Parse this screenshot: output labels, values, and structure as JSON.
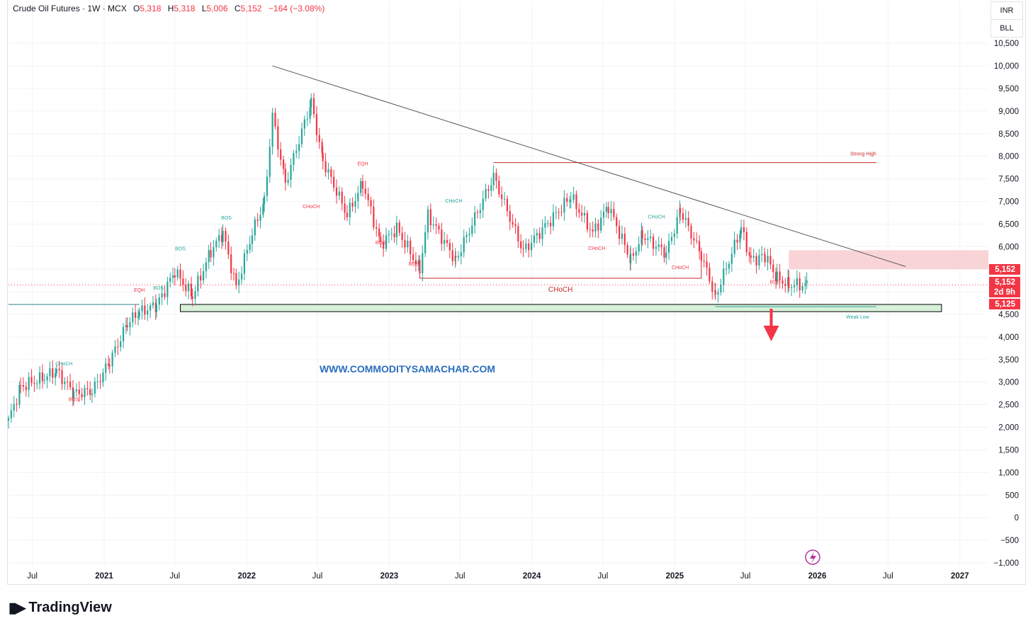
{
  "header": {
    "symbol": "Crude Oil Futures · 1W · MCX",
    "o_label": "O",
    "o_value": "5,318",
    "h_label": "H",
    "h_value": "5,318",
    "l_label": "L",
    "l_value": "5,006",
    "c_label": "C",
    "c_value": "5,152",
    "change": "−164 (−3.08%)"
  },
  "currency": {
    "top": "INR",
    "bottom": "BLL"
  },
  "footer": {
    "brand": "TradingView",
    "logo_icon": "tradingview-logo-icon"
  },
  "colors": {
    "up": "#26a69a",
    "down": "#f23645",
    "trendline": "#555555",
    "strong_high": "#c62828",
    "zone_red": "#f7c6c9",
    "zone_green": "#d7f0d9",
    "watermark": "#2a6ebd"
  },
  "chart_data": {
    "type": "candlestick",
    "title": "Crude Oil Futures · 1W · MCX",
    "ylim": [
      -1000,
      10800
    ],
    "y_ticks": [
      "10,500",
      "10,000",
      "9,500",
      "9,000",
      "8,500",
      "8,000",
      "7,500",
      "7,000",
      "6,500",
      "6,000",
      "5,500",
      "5,000",
      "4,500",
      "4,000",
      "3,500",
      "3,000",
      "2,500",
      "2,000",
      "1,500",
      "1,000",
      "500",
      "0",
      "−500",
      "−1,000"
    ],
    "x_ticks": [
      "Jul",
      "2021",
      "Jul",
      "2022",
      "Jul",
      "2023",
      "Jul",
      "2024",
      "Jul",
      "2025",
      "Jul",
      "2026",
      "Jul",
      "2027"
    ],
    "x_tick_dates": [
      "2020-07-01",
      "2021-01-01",
      "2021-07-01",
      "2022-01-01",
      "2022-07-01",
      "2023-01-01",
      "2023-07-01",
      "2024-01-01",
      "2024-07-01",
      "2025-01-01",
      "2025-07-01",
      "2026-01-01",
      "2026-07-01",
      "2027-01-01"
    ],
    "xlim": [
      "2020-05-01",
      "2027-03-15"
    ],
    "price_path": [
      {
        "date": "2020-05-01",
        "price": 2150
      },
      {
        "date": "2020-06-01",
        "price": 2900
      },
      {
        "date": "2020-08-01",
        "price": 3100
      },
      {
        "date": "2020-09-01",
        "price": 3250
      },
      {
        "date": "2020-10-15",
        "price": 2750
      },
      {
        "date": "2020-12-01",
        "price": 2800
      },
      {
        "date": "2021-01-15",
        "price": 3450
      },
      {
        "date": "2021-03-01",
        "price": 4300
      },
      {
        "date": "2021-04-01",
        "price": 4550
      },
      {
        "date": "2021-05-15",
        "price": 4700
      },
      {
        "date": "2021-07-01",
        "price": 5450
      },
      {
        "date": "2021-08-15",
        "price": 4900
      },
      {
        "date": "2021-10-01",
        "price": 5900
      },
      {
        "date": "2021-11-01",
        "price": 6300
      },
      {
        "date": "2021-12-05",
        "price": 5100
      },
      {
        "date": "2022-01-15",
        "price": 6300
      },
      {
        "date": "2022-02-15",
        "price": 7000
      },
      {
        "date": "2022-03-08",
        "price": 8900
      },
      {
        "date": "2022-04-10",
        "price": 7400
      },
      {
        "date": "2022-06-15",
        "price": 9200
      },
      {
        "date": "2022-07-15",
        "price": 7900
      },
      {
        "date": "2022-09-15",
        "price": 6700
      },
      {
        "date": "2022-10-25",
        "price": 7400
      },
      {
        "date": "2022-12-10",
        "price": 6050
      },
      {
        "date": "2023-01-20",
        "price": 6400
      },
      {
        "date": "2023-03-20",
        "price": 5500
      },
      {
        "date": "2023-04-10",
        "price": 6700
      },
      {
        "date": "2023-06-20",
        "price": 5700
      },
      {
        "date": "2023-09-25",
        "price": 7550
      },
      {
        "date": "2023-12-10",
        "price": 5900
      },
      {
        "date": "2024-04-10",
        "price": 7100
      },
      {
        "date": "2024-06-05",
        "price": 6300
      },
      {
        "date": "2024-07-15",
        "price": 6900
      },
      {
        "date": "2024-09-10",
        "price": 5700
      },
      {
        "date": "2024-10-10",
        "price": 6250
      },
      {
        "date": "2024-12-10",
        "price": 5850
      },
      {
        "date": "2025-01-15",
        "price": 6800
      },
      {
        "date": "2025-03-10",
        "price": 5800
      },
      {
        "date": "2025-04-15",
        "price": 4900
      },
      {
        "date": "2025-06-20",
        "price": 6400
      },
      {
        "date": "2025-07-15",
        "price": 5700
      },
      {
        "date": "2025-08-20",
        "price": 5800
      },
      {
        "date": "2025-09-20",
        "price": 5300
      },
      {
        "date": "2025-10-20",
        "price": 5150
      },
      {
        "date": "2025-12-05",
        "price": 5152
      }
    ],
    "trendline": {
      "from": {
        "date": "2022-03-08",
        "price": 10000
      },
      "to": {
        "date": "2026-08-15",
        "price": 5560
      }
    },
    "strong_high": {
      "label": "Strong High",
      "price": 7860,
      "from": "2023-09-25",
      "to": "2026-06-01"
    },
    "weak_low": {
      "label": "Weak Low",
      "price": 4670,
      "from": "2025-04-15",
      "to": "2026-06-01"
    },
    "supply_zone": {
      "price_low": 5500,
      "price_high": 5920,
      "from": "2025-10-20",
      "to": "2027-03-15"
    },
    "demand_zone": {
      "price_low": 4560,
      "price_high": 4720,
      "from": "2021-07-15",
      "to": "2026-11-15"
    },
    "left_support": {
      "price": 4720,
      "from": "2020-05-01",
      "to": "2021-04-01"
    },
    "choch_main": {
      "label": "CHoCH",
      "price": 5300,
      "from": "2023-03-20",
      "to": "2025-03-10"
    },
    "dotted_price_line": 5152,
    "annotations": [
      {
        "label": "CHoCH",
        "date": "2020-09-20",
        "price": 3370,
        "color": "#26a69a"
      },
      {
        "label": "BOS",
        "date": "2020-10-15",
        "price": 2580,
        "color": "#f23645"
      },
      {
        "label": "EQH",
        "date": "2021-04-01",
        "price": 5000,
        "color": "#f23645"
      },
      {
        "label": "BOS",
        "date": "2021-05-20",
        "price": 5050,
        "color": "#26a69a"
      },
      {
        "label": "BOS",
        "date": "2021-07-15",
        "price": 5920,
        "color": "#26a69a"
      },
      {
        "label": "BOS",
        "date": "2021-11-10",
        "price": 6600,
        "color": "#26a69a"
      },
      {
        "label": "CHoCH",
        "date": "2022-06-15",
        "price": 6850,
        "color": "#f23645"
      },
      {
        "label": "EQH",
        "date": "2022-10-25",
        "price": 7800,
        "color": "#f23645"
      },
      {
        "label": "BOS",
        "date": "2022-12-10",
        "price": 6050,
        "color": "#f23645"
      },
      {
        "label": "BOS",
        "date": "2023-03-05",
        "price": 5580,
        "color": "#f23645"
      },
      {
        "label": "CHoCH",
        "date": "2023-06-15",
        "price": 6980,
        "color": "#26a69a"
      },
      {
        "label": "CHoCH",
        "date": "2024-06-15",
        "price": 5930,
        "color": "#f23645"
      },
      {
        "label": "CHoCH",
        "date": "2024-11-15",
        "price": 6620,
        "color": "#26a69a"
      },
      {
        "label": "CHoCH",
        "date": "2025-01-15",
        "price": 5500,
        "color": "#f23645"
      },
      {
        "label": "BOS",
        "date": "2025-09-15",
        "price": 5180,
        "color": "#f23645"
      }
    ],
    "last_price": "5,152",
    "price_labels": [
      "5,152",
      "5,152",
      "2d 9h",
      "5,125"
    ],
    "watermark": "WWW.COMMODITYSAMACHAR.COM",
    "down_arrow_date": "2025-09-05"
  }
}
